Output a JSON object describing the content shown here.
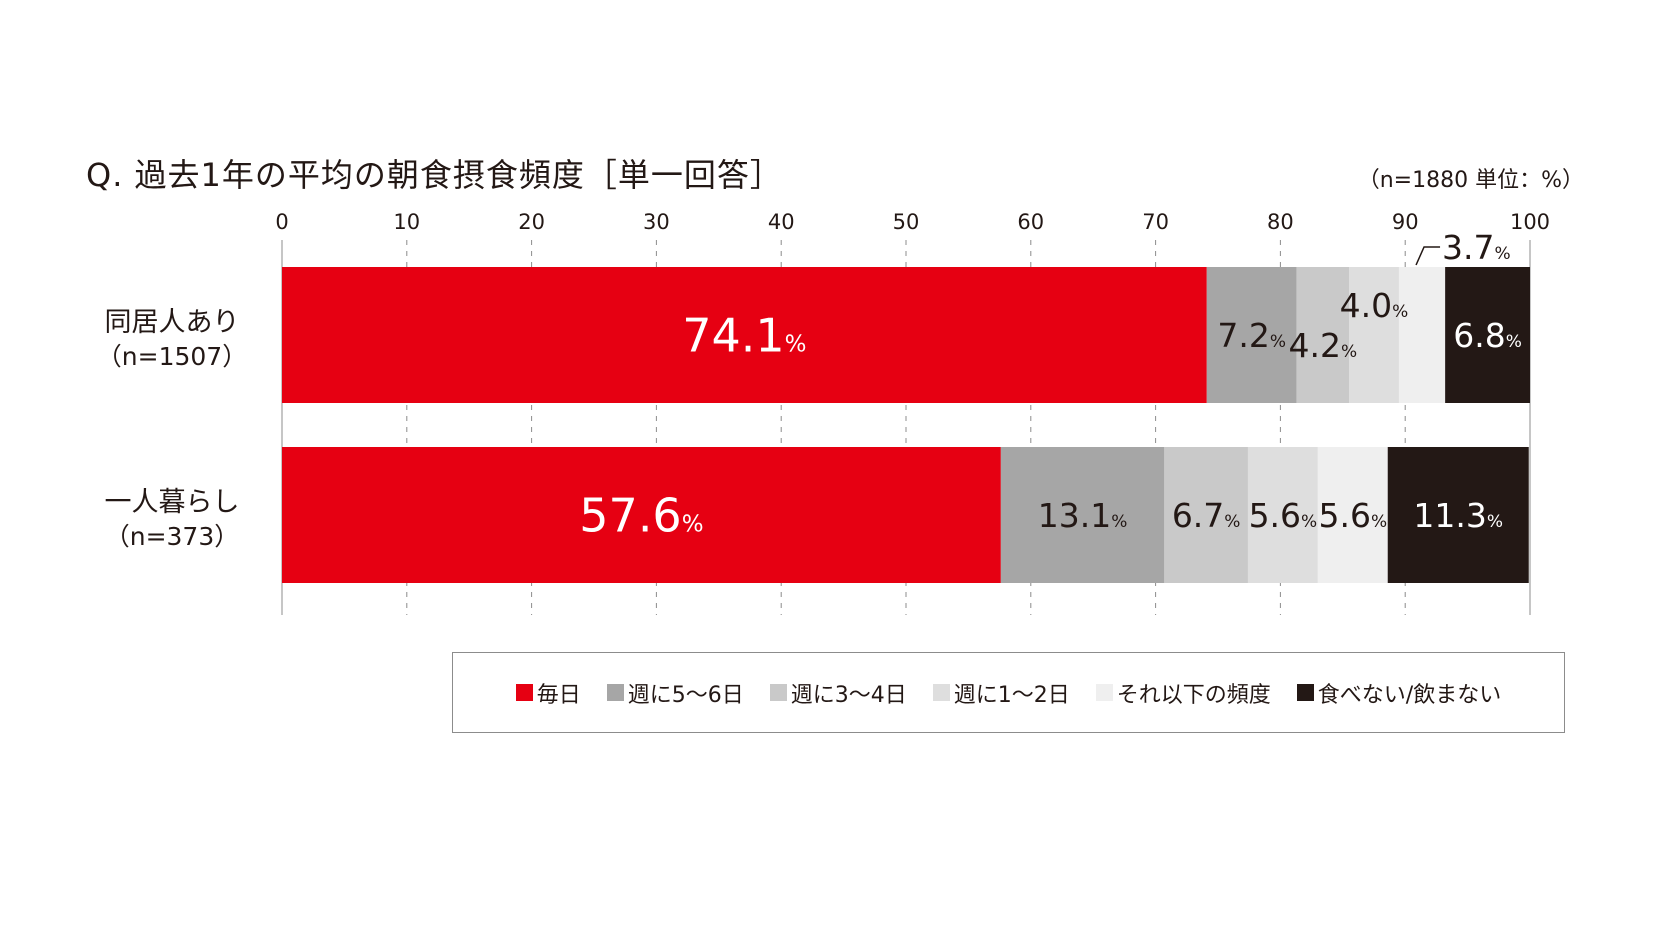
{
  "title": "Q.  過去1年の平均の朝食摂食頻度［単一回答］",
  "unit_note": "（n=1880   単位：%）",
  "colors": {
    "daily": "#e60012",
    "w56": "#a6a6a6",
    "w34": "#c9c9c9",
    "w12": "#dedede",
    "less": "#efefef",
    "none": "#231815"
  },
  "chart_data": {
    "type": "bar",
    "orientation": "horizontal",
    "stacked": true,
    "percent_suffix": "%",
    "x_ticks": [
      0,
      10,
      20,
      30,
      40,
      50,
      60,
      70,
      80,
      90,
      100
    ],
    "xlim": [
      0,
      100
    ],
    "grid": true,
    "categories": [
      {
        "label": "同居人あり",
        "sub": "（n=1507）"
      },
      {
        "label": "一人暮らし",
        "sub": "（n=373）"
      }
    ],
    "series": [
      {
        "name": "毎日",
        "color_key": "daily",
        "values": [
          74.1,
          57.6
        ],
        "labels": [
          "74.1",
          "57.6"
        ]
      },
      {
        "name": "週に5～6日",
        "color_key": "w56",
        "values": [
          7.2,
          13.1
        ],
        "labels": [
          "7.2",
          "13.1"
        ]
      },
      {
        "name": "週に3～4日",
        "color_key": "w34",
        "values": [
          4.2,
          6.7
        ],
        "labels": [
          "4.2",
          "6.7"
        ]
      },
      {
        "name": "週に1～2日",
        "color_key": "w12",
        "values": [
          4.0,
          5.6
        ],
        "labels": [
          "4.0",
          "5.6"
        ]
      },
      {
        "name": "それ以下の頻度",
        "color_key": "less",
        "values": [
          3.7,
          5.6
        ],
        "labels": [
          "3.7",
          "5.6"
        ]
      },
      {
        "name": "食べない/飲まない",
        "color_key": "none",
        "values": [
          6.8,
          11.3
        ],
        "labels": [
          "6.8",
          "11.3"
        ]
      }
    ]
  }
}
